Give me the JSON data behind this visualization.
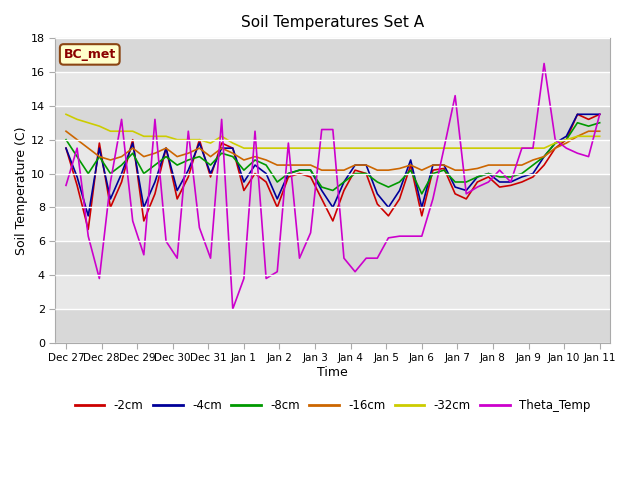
{
  "title": "Soil Temperatures Set A",
  "xlabel": "Time",
  "ylabel": "Soil Temperature (C)",
  "xlabels": [
    "Dec 27",
    "Dec 28",
    "Dec 29",
    "Dec 30",
    "Dec 31",
    "Jan 1",
    "Jan 2",
    "Jan 3",
    "Jan 4",
    "Jan 5",
    "Jan 6",
    "Jan 7",
    "Jan 8",
    "Jan 9",
    "Jan 10",
    "Jan 11"
  ],
  "ylim": [
    0,
    18
  ],
  "yticks": [
    0,
    2,
    4,
    6,
    8,
    10,
    12,
    14,
    16,
    18
  ],
  "annotation_text": "BC_met",
  "bg_color": "#e8e8e8",
  "colors": {
    "-2cm": "#cc0000",
    "-4cm": "#000099",
    "-8cm": "#009900",
    "-16cm": "#cc6600",
    "-32cm": "#cccc00",
    "Theta_Temp": "#cc00cc"
  },
  "band_colors": [
    "#d8d8d8",
    "#e8e8e8"
  ],
  "series": {
    "-2cm": [
      11.5,
      9.3,
      6.7,
      11.8,
      8.0,
      9.5,
      12.0,
      7.2,
      8.8,
      11.5,
      8.5,
      9.8,
      12.0,
      9.8,
      11.8,
      11.5,
      9.0,
      10.0,
      9.5,
      8.0,
      9.8,
      10.0,
      9.8,
      8.5,
      7.2,
      9.0,
      10.2,
      10.0,
      8.2,
      7.5,
      8.5,
      10.5,
      7.5,
      10.2,
      10.3,
      8.8,
      8.5,
      9.5,
      9.8,
      9.2,
      9.3,
      9.5,
      9.8,
      10.5,
      11.5,
      12.0,
      13.5,
      13.2,
      13.5
    ],
    "-4cm": [
      11.5,
      9.8,
      7.5,
      11.5,
      8.5,
      10.0,
      11.8,
      8.0,
      9.5,
      11.5,
      9.0,
      10.2,
      11.8,
      10.0,
      11.5,
      11.5,
      9.5,
      10.5,
      10.0,
      8.5,
      10.0,
      10.2,
      10.2,
      9.0,
      8.0,
      9.5,
      10.5,
      10.5,
      8.8,
      8.0,
      9.0,
      10.8,
      8.0,
      10.5,
      10.5,
      9.2,
      9.0,
      9.8,
      10.0,
      9.5,
      9.5,
      9.8,
      10.0,
      11.0,
      11.8,
      12.2,
      13.5,
      13.5,
      13.5
    ],
    "-8cm": [
      12.0,
      11.0,
      10.0,
      11.0,
      10.0,
      10.5,
      11.2,
      10.0,
      10.5,
      11.0,
      10.5,
      10.8,
      11.0,
      10.5,
      11.2,
      11.0,
      10.2,
      10.8,
      10.5,
      9.5,
      10.0,
      10.2,
      10.2,
      9.2,
      9.0,
      9.5,
      10.0,
      10.0,
      9.5,
      9.2,
      9.5,
      10.2,
      8.8,
      10.0,
      10.2,
      9.5,
      9.5,
      9.8,
      10.0,
      9.8,
      9.8,
      10.0,
      10.5,
      11.0,
      11.8,
      12.0,
      13.0,
      12.8,
      13.0
    ],
    "-16cm": [
      12.5,
      12.0,
      11.5,
      11.0,
      10.8,
      11.0,
      11.5,
      11.0,
      11.2,
      11.5,
      11.0,
      11.2,
      11.5,
      11.0,
      11.5,
      11.2,
      10.8,
      11.0,
      10.8,
      10.5,
      10.5,
      10.5,
      10.5,
      10.2,
      10.2,
      10.2,
      10.5,
      10.5,
      10.2,
      10.2,
      10.3,
      10.5,
      10.2,
      10.5,
      10.5,
      10.2,
      10.2,
      10.3,
      10.5,
      10.5,
      10.5,
      10.5,
      10.8,
      11.0,
      11.5,
      11.8,
      12.2,
      12.5,
      12.5
    ],
    "-32cm": [
      13.5,
      13.2,
      13.0,
      12.8,
      12.5,
      12.5,
      12.5,
      12.2,
      12.2,
      12.2,
      12.0,
      12.0,
      12.0,
      11.8,
      12.2,
      11.8,
      11.5,
      11.5,
      11.5,
      11.5,
      11.5,
      11.5,
      11.5,
      11.5,
      11.5,
      11.5,
      11.5,
      11.5,
      11.5,
      11.5,
      11.5,
      11.5,
      11.5,
      11.5,
      11.5,
      11.5,
      11.5,
      11.5,
      11.5,
      11.5,
      11.5,
      11.5,
      11.5,
      11.5,
      11.8,
      12.0,
      12.2,
      12.2,
      12.2
    ],
    "Theta_Temp": [
      9.3,
      11.5,
      6.3,
      3.8,
      9.5,
      13.2,
      7.2,
      5.2,
      13.2,
      6.0,
      5.0,
      12.5,
      6.8,
      5.0,
      13.2,
      2.0,
      3.8,
      12.5,
      3.8,
      4.2,
      11.8,
      5.0,
      6.5,
      12.6,
      12.6,
      5.0,
      4.2,
      5.0,
      5.0,
      6.2,
      6.3,
      6.3,
      6.3,
      8.5,
      11.5,
      14.6,
      8.8,
      9.2,
      9.5,
      10.2,
      9.5,
      11.5,
      11.5,
      16.5,
      12.0,
      11.5,
      11.2,
      11.0,
      13.5
    ]
  }
}
